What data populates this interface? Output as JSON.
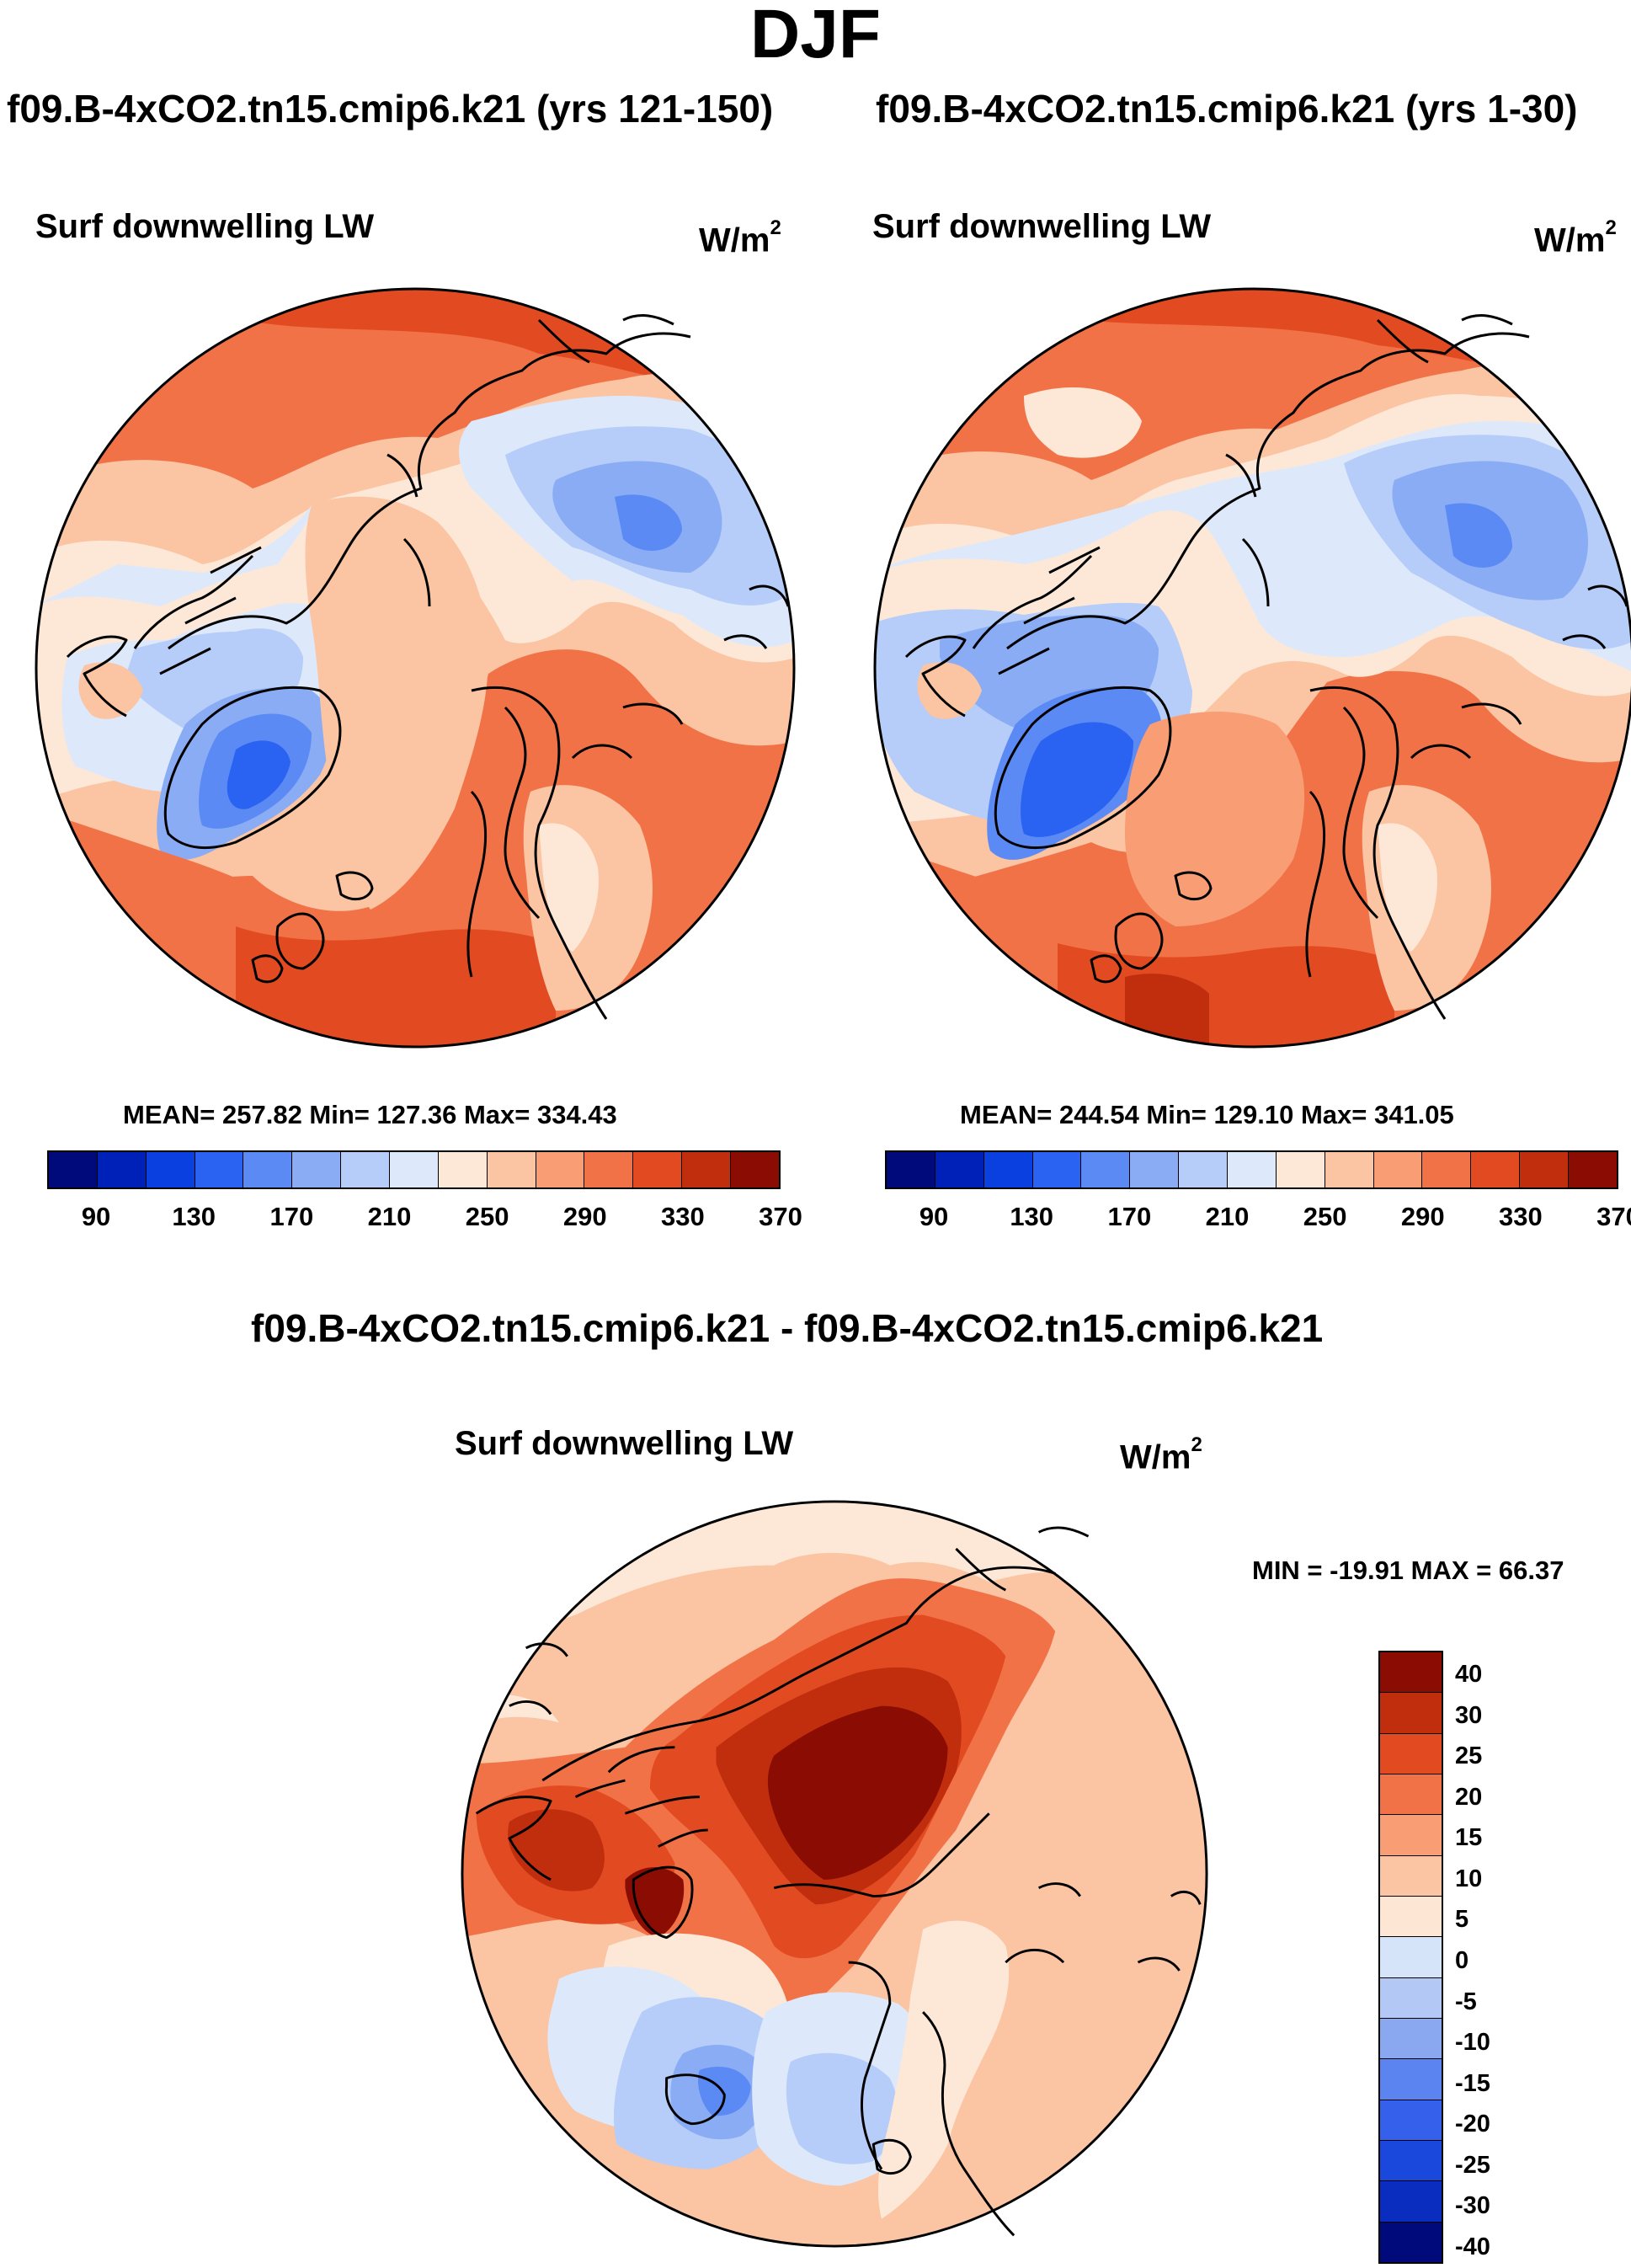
{
  "title": "DJF",
  "panels": [
    {
      "case_title": "f09.B-4xCO2.tn15.cmip6.k21 (yrs 121-150)",
      "variable": "Surf downwelling LW",
      "units_base": "W/m",
      "units_exp": "2",
      "stats": "MEAN= 257.82  Min= 127.36  Max= 334.43"
    },
    {
      "case_title": "f09.B-4xCO2.tn15.cmip6.k21 (yrs 1-30)",
      "variable": "Surf downwelling LW",
      "units_base": "W/m",
      "units_exp": "2",
      "stats": "MEAN= 244.54  Min= 129.10  Max= 341.05"
    }
  ],
  "diff_panel": {
    "title": "f09.B-4xCO2.tn15.cmip6.k21 - f09.B-4xCO2.tn15.cmip6.k21",
    "variable": "Surf downwelling LW",
    "units_base": "W/m",
    "units_exp": "2",
    "stats": "MIN = -19.91 MAX =  66.37"
  },
  "colorbar_fields": {
    "colors": [
      "#000a7a",
      "#0021b8",
      "#0a40e0",
      "#2a62f2",
      "#5b8af5",
      "#89acf4",
      "#b5cdf8",
      "#dde9fb",
      "#fde8d7",
      "#fbc4a3",
      "#f89d74",
      "#f27248",
      "#e24b22",
      "#c02e0d",
      "#8a0c02"
    ],
    "tick_labels": [
      "90",
      "130",
      "170",
      "210",
      "250",
      "290",
      "330",
      "370"
    ]
  },
  "colorbar_diff": {
    "colors": [
      "#000a7a",
      "#0a2dbf",
      "#1a48dc",
      "#3560ec",
      "#5b84f0",
      "#8aa8f0",
      "#b3c8f5",
      "#d6e4fa",
      "#fde6d4",
      "#fbc4a3",
      "#f89d74",
      "#f27248",
      "#e24b22",
      "#c02e0d",
      "#8a0c02"
    ],
    "tick_labels": [
      "40",
      "30",
      "25",
      "20",
      "15",
      "10",
      "5",
      "0",
      "-5",
      "-10",
      "-15",
      "-20",
      "-25",
      "-30",
      "-40"
    ]
  },
  "map_colors": {
    "deep_red": "#8a0c02",
    "dark_red": "#c02e0d",
    "red": "#e24b22",
    "orange_red": "#f27248",
    "orange": "#f89d74",
    "salmon": "#fbc4a3",
    "cream": "#fde8d7",
    "pale_blue": "#dde9fb",
    "light_blue": "#b5cdf8",
    "blue": "#89acf4",
    "mid_blue": "#5b8af5",
    "strong_blue": "#2a62f2",
    "deep_blue": "#0a40e0"
  }
}
